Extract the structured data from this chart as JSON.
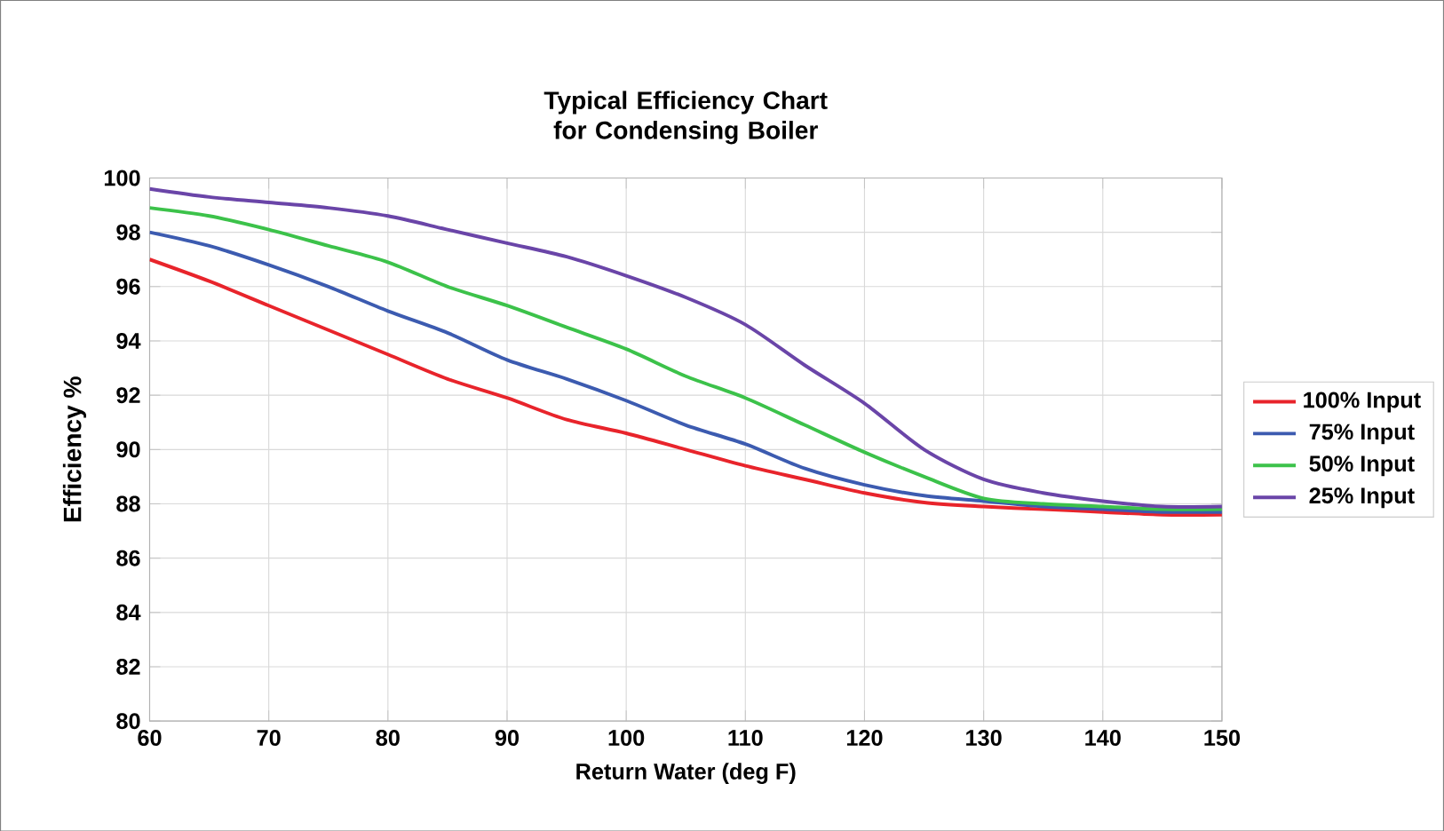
{
  "chart_data": {
    "type": "line",
    "title": "Typical Efficiency Chart for Condensing Boiler",
    "xlabel": "Return Water (deg F)",
    "ylabel": "Efficiency %",
    "x": [
      60,
      65,
      70,
      75,
      80,
      85,
      90,
      95,
      100,
      105,
      110,
      115,
      120,
      125,
      130,
      135,
      140,
      145,
      150
    ],
    "series": [
      {
        "name": "100% Input",
        "color": "#e8242b",
        "values": [
          97.0,
          96.2,
          95.3,
          94.4,
          93.5,
          92.6,
          91.9,
          91.1,
          90.6,
          90.0,
          89.4,
          88.9,
          88.4,
          88.05,
          87.9,
          87.8,
          87.7,
          87.6,
          87.6
        ]
      },
      {
        "name": "75% Input",
        "color": "#3c5bb0",
        "values": [
          98.0,
          97.5,
          96.8,
          96.0,
          95.1,
          94.3,
          93.3,
          92.6,
          91.8,
          90.9,
          90.2,
          89.3,
          88.7,
          88.3,
          88.1,
          87.9,
          87.8,
          87.7,
          87.7
        ]
      },
      {
        "name": "50% Input",
        "color": "#3cc24a",
        "values": [
          98.9,
          98.6,
          98.1,
          97.5,
          96.9,
          96.0,
          95.3,
          94.5,
          93.7,
          92.7,
          91.9,
          90.9,
          89.9,
          89.0,
          88.2,
          88.0,
          87.9,
          87.8,
          87.8
        ]
      },
      {
        "name": "25% Input",
        "color": "#6a45a8",
        "values": [
          99.6,
          99.3,
          99.1,
          98.9,
          98.6,
          98.1,
          97.6,
          97.1,
          96.4,
          95.6,
          94.6,
          93.1,
          91.7,
          90.0,
          88.9,
          88.4,
          88.1,
          87.9,
          87.9
        ]
      }
    ],
    "xlim": [
      60,
      150
    ],
    "xticks": [
      60,
      70,
      80,
      90,
      100,
      110,
      120,
      130,
      140,
      150
    ],
    "ylim": [
      80,
      100
    ],
    "yticks": [
      80,
      82,
      84,
      86,
      88,
      90,
      92,
      94,
      96,
      98,
      100
    ],
    "grid": true,
    "legend": "right",
    "marker": "none",
    "line_style": "solid"
  }
}
